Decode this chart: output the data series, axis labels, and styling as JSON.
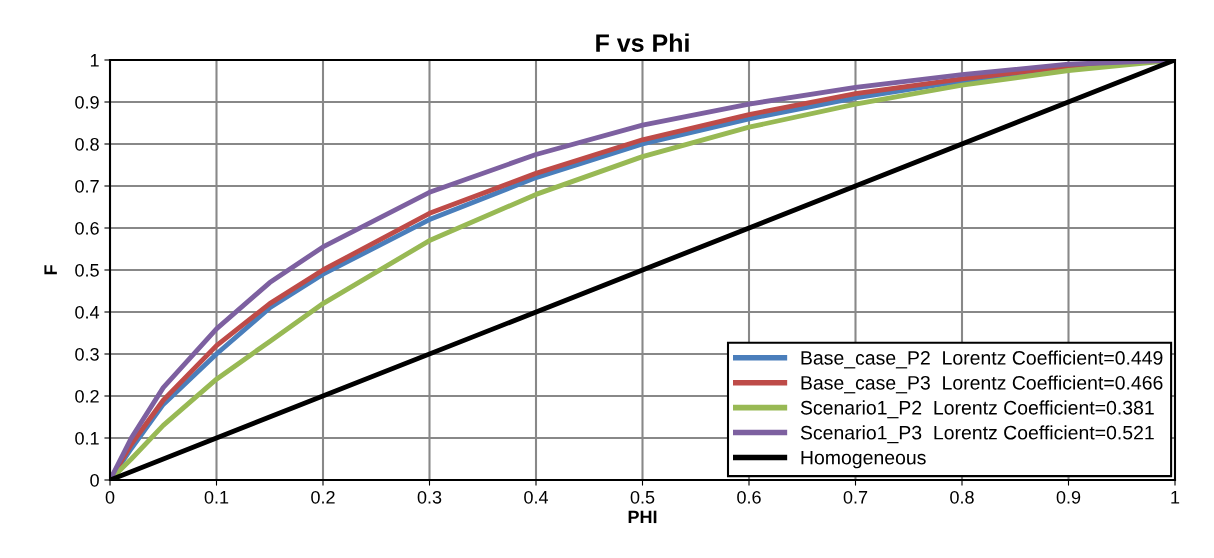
{
  "chart_data": {
    "type": "line",
    "title": "F vs Phi",
    "xlabel": "PHI",
    "ylabel": "F",
    "xlim": [
      0,
      1
    ],
    "ylim": [
      0,
      1
    ],
    "xticks": [
      {
        "value": 0,
        "label": "0"
      },
      0.1,
      0.2,
      0.3,
      0.4,
      0.5,
      0.6,
      0.7,
      0.8,
      0.9,
      {
        "value": 1,
        "label": "1"
      }
    ],
    "yticks": [
      {
        "value": 0,
        "label": "0"
      },
      0.1,
      0.2,
      0.3,
      0.4,
      0.5,
      0.6,
      0.7,
      0.8,
      0.9,
      {
        "value": 1,
        "label": "1"
      }
    ],
    "grid": true,
    "legend": "bottom right",
    "marker": "none",
    "line_style": "solid",
    "x": [
      0,
      0.02,
      0.05,
      0.1,
      0.15,
      0.2,
      0.3,
      0.4,
      0.5,
      0.6,
      0.7,
      0.8,
      0.9,
      1
    ],
    "series": [
      {
        "name": "Base_case_P2  Lorentz Coefficient=0.449",
        "color": "#4a7ebb",
        "values": [
          0,
          0.075,
          0.18,
          0.3,
          0.41,
          0.49,
          0.62,
          0.72,
          0.8,
          0.86,
          0.91,
          0.95,
          0.98,
          1
        ]
      },
      {
        "name": "Base_case_P3  Lorentz Coefficient=0.466",
        "color": "#be4b48",
        "values": [
          0,
          0.085,
          0.19,
          0.32,
          0.42,
          0.5,
          0.635,
          0.73,
          0.81,
          0.87,
          0.92,
          0.955,
          0.985,
          1
        ]
      },
      {
        "name": "Scenario1_P2  Lorentz Coefficient=0.381",
        "color": "#98b954",
        "values": [
          0,
          0.05,
          0.13,
          0.24,
          0.33,
          0.42,
          0.57,
          0.68,
          0.77,
          0.84,
          0.895,
          0.94,
          0.975,
          1
        ]
      },
      {
        "name": "Scenario1_P3  Lorentz Coefficient=0.521",
        "color": "#7d60a0",
        "values": [
          0,
          0.1,
          0.22,
          0.36,
          0.47,
          0.555,
          0.685,
          0.775,
          0.845,
          0.895,
          0.935,
          0.965,
          0.99,
          1
        ]
      },
      {
        "name": "Homogeneous",
        "color": "#000000",
        "x": [
          0,
          1
        ],
        "values": [
          0,
          1
        ]
      }
    ]
  }
}
